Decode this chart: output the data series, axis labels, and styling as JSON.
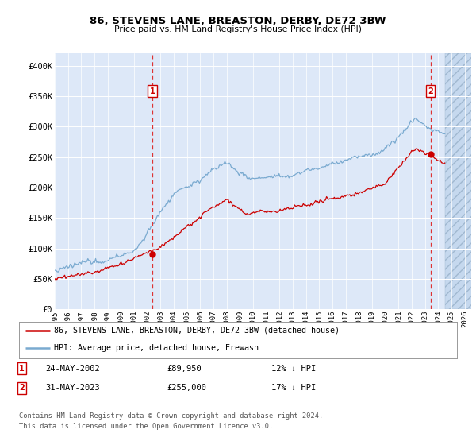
{
  "title": "86, STEVENS LANE, BREASTON, DERBY, DE72 3BW",
  "subtitle": "Price paid vs. HM Land Registry's House Price Index (HPI)",
  "ylabel_ticks": [
    "£0",
    "£50K",
    "£100K",
    "£150K",
    "£200K",
    "£250K",
    "£300K",
    "£350K",
    "£400K"
  ],
  "ytick_values": [
    0,
    50000,
    100000,
    150000,
    200000,
    250000,
    300000,
    350000,
    400000
  ],
  "ylim": [
    0,
    420000
  ],
  "xlim_start": 1995.0,
  "xlim_end": 2026.5,
  "background_color": "#dde8f8",
  "grid_color": "#ffffff",
  "hpi_line_color": "#7aaad0",
  "price_line_color": "#cc0000",
  "marker1_date": 2002.38,
  "marker1_price": 89950,
  "marker2_date": 2023.42,
  "marker2_price": 255000,
  "legend_line1": "86, STEVENS LANE, BREASTON, DERBY, DE72 3BW (detached house)",
  "legend_line2": "HPI: Average price, detached house, Erewash",
  "marker1_text": "24-MAY-2002",
  "marker1_price_text": "£89,950",
  "marker1_hpi_text": "12% ↓ HPI",
  "marker2_text": "31-MAY-2023",
  "marker2_price_text": "£255,000",
  "marker2_hpi_text": "17% ↓ HPI",
  "footer1": "Contains HM Land Registry data © Crown copyright and database right 2024.",
  "footer2": "This data is licensed under the Open Government Licence v3.0.",
  "hatch_start": 2024.5
}
